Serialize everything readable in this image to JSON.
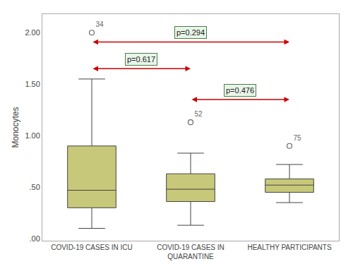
{
  "chart_data": {
    "type": "box",
    "categories": [
      "COVID-19 CASES IN ICU",
      "COVID-19 CASES IN\nQUARANTINE",
      "HEALTHY PARTICIPANTS"
    ],
    "boxes": [
      {
        "median": 0.47,
        "q1": 0.3,
        "q3": 0.9,
        "whisker_low": 0.1,
        "whisker_high": 1.55,
        "outliers": [
          2.0
        ],
        "outlier_labels": [
          "34"
        ]
      },
      {
        "median": 0.48,
        "q1": 0.36,
        "q3": 0.63,
        "whisker_low": 0.13,
        "whisker_high": 0.83,
        "outliers": [
          1.13
        ],
        "outlier_labels": [
          "52"
        ]
      },
      {
        "median": 0.52,
        "q1": 0.45,
        "q3": 0.58,
        "whisker_low": 0.35,
        "whisker_high": 0.72,
        "outliers": [
          0.9
        ],
        "outlier_labels": [
          "75"
        ]
      }
    ],
    "color": "#c8c87a",
    "ylabel": "Monocytes",
    "ylim": [
      -0.02,
      2.18
    ],
    "yticks": [
      {
        "value": 0.0,
        "label": ".00"
      },
      {
        "value": 0.5,
        "label": ".50"
      },
      {
        "value": 1.0,
        "label": "1.00"
      },
      {
        "value": 1.5,
        "label": "1.50"
      },
      {
        "value": 2.0,
        "label": "2.00"
      }
    ],
    "annotations": [
      {
        "text": "p=0.294",
        "from": "COVID-19 CASES IN ICU",
        "to": "HEALTHY PARTICIPANTS",
        "y_arrow": 1.91,
        "y_text": 1.94,
        "color": "#cc0000"
      },
      {
        "text": "p=0.617",
        "from": "COVID-19 CASES IN ICU",
        "to": "COVID-19 CASES IN\nQUARANTINE",
        "y_arrow": 1.65,
        "y_text": 1.68,
        "color": "#cc0000"
      },
      {
        "text": "p=0.476",
        "from": "COVID-19 CASES IN\nQUARANTINE",
        "to": "HEALTHY PARTICIPANTS",
        "y_arrow": 1.35,
        "y_text": 1.38,
        "color": "#cc0000"
      }
    ],
    "grid": false
  }
}
